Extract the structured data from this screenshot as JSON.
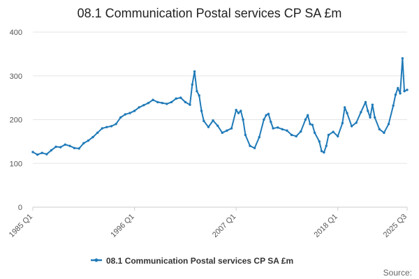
{
  "chart_data": {
    "type": "line",
    "title": "08.1 Communication Postal services CP SA £m",
    "xlabel": "",
    "ylabel": "",
    "ylim": [
      0,
      400
    ],
    "xlim": [
      1985.0,
      2025.5
    ],
    "y_ticks": [
      "0",
      "100",
      "200",
      "300",
      "400"
    ],
    "x_ticks": [
      {
        "label": "1985 Q1",
        "x": 1985.0
      },
      {
        "label": "1996 Q1",
        "x": 1996.0
      },
      {
        "label": "2007 Q1",
        "x": 2007.0
      },
      {
        "label": "2018 Q1",
        "x": 2018.0
      },
      {
        "label": "2025 Q3",
        "x": 2025.5
      }
    ],
    "grid": true,
    "legend": {
      "position": "bottom",
      "label": "08.1 Communication Postal services CP SA £m"
    },
    "source_label": "Source:",
    "colors": {
      "series": "#1f7ab8",
      "grid": "#e6e6e6",
      "axis": "#cccccc",
      "text": "#555555",
      "title": "#222222"
    },
    "series": [
      {
        "name": "08.1 Communication Postal services CP SA £m",
        "points": [
          [
            1985.0,
            126
          ],
          [
            1985.5,
            120
          ],
          [
            1986.0,
            124
          ],
          [
            1986.5,
            121
          ],
          [
            1987.0,
            130
          ],
          [
            1987.5,
            138
          ],
          [
            1988.0,
            137
          ],
          [
            1988.5,
            143
          ],
          [
            1989.0,
            140
          ],
          [
            1989.5,
            135
          ],
          [
            1990.0,
            134
          ],
          [
            1990.5,
            146
          ],
          [
            1991.0,
            152
          ],
          [
            1991.5,
            160
          ],
          [
            1992.0,
            170
          ],
          [
            1992.5,
            180
          ],
          [
            1993.0,
            183
          ],
          [
            1993.5,
            185
          ],
          [
            1994.0,
            190
          ],
          [
            1994.5,
            205
          ],
          [
            1995.0,
            212
          ],
          [
            1995.5,
            215
          ],
          [
            1996.0,
            220
          ],
          [
            1996.5,
            228
          ],
          [
            1997.0,
            233
          ],
          [
            1997.5,
            238
          ],
          [
            1998.0,
            245
          ],
          [
            1998.5,
            240
          ],
          [
            1999.0,
            238
          ],
          [
            1999.5,
            236
          ],
          [
            2000.0,
            240
          ],
          [
            2000.5,
            248
          ],
          [
            2001.0,
            250
          ],
          [
            2001.5,
            240
          ],
          [
            2002.0,
            234
          ],
          [
            2002.25,
            280
          ],
          [
            2002.5,
            310
          ],
          [
            2002.75,
            265
          ],
          [
            2003.0,
            255
          ],
          [
            2003.25,
            220
          ],
          [
            2003.5,
            197
          ],
          [
            2004.0,
            183
          ],
          [
            2004.5,
            198
          ],
          [
            2005.0,
            186
          ],
          [
            2005.5,
            170
          ],
          [
            2006.0,
            175
          ],
          [
            2006.5,
            180
          ],
          [
            2007.0,
            222
          ],
          [
            2007.25,
            215
          ],
          [
            2007.5,
            220
          ],
          [
            2007.75,
            200
          ],
          [
            2008.0,
            165
          ],
          [
            2008.5,
            140
          ],
          [
            2009.0,
            135
          ],
          [
            2009.5,
            160
          ],
          [
            2010.0,
            200
          ],
          [
            2010.25,
            210
          ],
          [
            2010.5,
            213
          ],
          [
            2010.75,
            195
          ],
          [
            2011.0,
            180
          ],
          [
            2011.5,
            182
          ],
          [
            2012.0,
            178
          ],
          [
            2012.5,
            175
          ],
          [
            2013.0,
            165
          ],
          [
            2013.5,
            162
          ],
          [
            2014.0,
            173
          ],
          [
            2014.5,
            200
          ],
          [
            2014.75,
            210
          ],
          [
            2015.0,
            190
          ],
          [
            2015.25,
            188
          ],
          [
            2015.5,
            170
          ],
          [
            2016.0,
            150
          ],
          [
            2016.25,
            128
          ],
          [
            2016.5,
            125
          ],
          [
            2016.75,
            140
          ],
          [
            2017.0,
            165
          ],
          [
            2017.5,
            172
          ],
          [
            2018.0,
            162
          ],
          [
            2018.5,
            192
          ],
          [
            2018.75,
            228
          ],
          [
            2019.0,
            215
          ],
          [
            2019.5,
            185
          ],
          [
            2020.0,
            193
          ],
          [
            2020.5,
            217
          ],
          [
            2021.0,
            240
          ],
          [
            2021.25,
            220
          ],
          [
            2021.5,
            205
          ],
          [
            2021.75,
            234
          ],
          [
            2022.0,
            205
          ],
          [
            2022.5,
            178
          ],
          [
            2023.0,
            170
          ],
          [
            2023.5,
            190
          ],
          [
            2024.0,
            232
          ],
          [
            2024.25,
            257
          ],
          [
            2024.5,
            272
          ],
          [
            2024.75,
            260
          ],
          [
            2025.0,
            340
          ],
          [
            2025.2,
            265
          ],
          [
            2025.5,
            268
          ]
        ]
      }
    ]
  }
}
